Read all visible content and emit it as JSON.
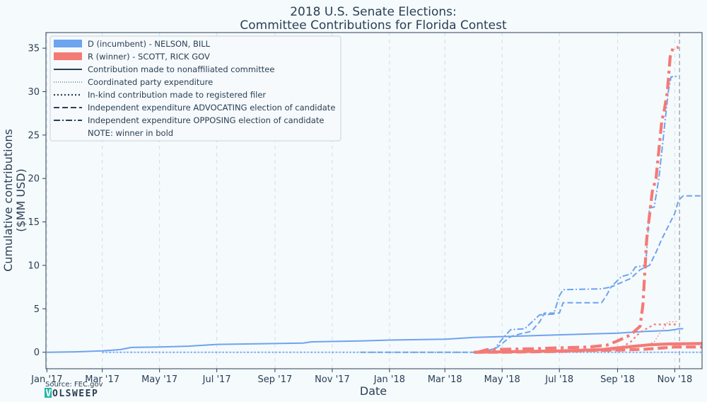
{
  "chart_data": {
    "type": "line",
    "title": [
      "2018 U.S. Senate Elections:",
      "Committee Contributions for Florida Contest"
    ],
    "xlabel": "Date",
    "ylabel": [
      "Cumulative contributions",
      "($MM USD)"
    ],
    "x_ticks": [
      {
        "date": "2017-01-01",
        "label": "Jan '17"
      },
      {
        "date": "2017-03-01",
        "label": "Mar '17"
      },
      {
        "date": "2017-05-01",
        "label": "May '17"
      },
      {
        "date": "2017-07-01",
        "label": "Jul '17"
      },
      {
        "date": "2017-09-01",
        "label": "Sep '17"
      },
      {
        "date": "2017-11-01",
        "label": "Nov '17"
      },
      {
        "date": "2018-01-01",
        "label": "Jan '18"
      },
      {
        "date": "2018-03-01",
        "label": "Mar '18"
      },
      {
        "date": "2018-05-01",
        "label": "May '18"
      },
      {
        "date": "2018-07-01",
        "label": "Jul '18"
      },
      {
        "date": "2018-09-01",
        "label": "Sep '18"
      },
      {
        "date": "2018-11-01",
        "label": "Nov '18"
      }
    ],
    "y_ticks": [
      0,
      5,
      10,
      15,
      20,
      25,
      30,
      35
    ],
    "xlim": [
      "2016-12-31",
      "2018-11-30"
    ],
    "ylim": [
      -1.9,
      36.8
    ],
    "grid": "vertical-dashed",
    "election_day": "2018-11-06",
    "legend_placement": "top-left",
    "legend": {
      "candidates": [
        {
          "label": "D (incumbent) - NELSON, BILL",
          "color": "#6ea3f0"
        },
        {
          "label": "R (winner) - SCOTT, RICK GOV",
          "color": "#f47a76"
        }
      ],
      "styles": [
        {
          "label": "Contribution made to nonaffiliated committee",
          "style": "solid"
        },
        {
          "label": "Coordinated party expenditure",
          "style": "thin-dotted"
        },
        {
          "label": "In-kind contribution made to registered filer",
          "style": "dotted"
        },
        {
          "label": "Independent expenditure ADVOCATING election of candidate",
          "style": "dashed"
        },
        {
          "label": "Independent expenditure OPPOSING election of candidate",
          "style": "dashdot"
        }
      ],
      "note": "NOTE: winner in bold"
    },
    "series": [
      {
        "candidate": "D",
        "style": "solid",
        "color": "#6ea3f0",
        "points": [
          [
            "2017-01-01",
            0
          ],
          [
            "2017-02-01",
            0.05
          ],
          [
            "2017-03-01",
            0.15
          ],
          [
            "2017-03-20",
            0.3
          ],
          [
            "2017-04-01",
            0.55
          ],
          [
            "2017-05-01",
            0.6
          ],
          [
            "2017-06-01",
            0.7
          ],
          [
            "2017-07-01",
            0.9
          ],
          [
            "2017-09-01",
            1.0
          ],
          [
            "2017-10-01",
            1.05
          ],
          [
            "2017-10-10",
            1.2
          ],
          [
            "2017-12-01",
            1.3
          ],
          [
            "2018-01-01",
            1.4
          ],
          [
            "2018-03-01",
            1.5
          ],
          [
            "2018-04-01",
            1.7
          ],
          [
            "2018-05-01",
            1.8
          ],
          [
            "2018-06-01",
            1.9
          ],
          [
            "2018-07-01",
            2.0
          ],
          [
            "2018-08-01",
            2.1
          ],
          [
            "2018-09-01",
            2.2
          ],
          [
            "2018-10-01",
            2.4
          ],
          [
            "2018-10-25",
            2.5
          ],
          [
            "2018-11-01",
            2.6
          ],
          [
            "2018-11-05",
            2.7
          ],
          [
            "2018-11-10",
            2.7
          ]
        ]
      },
      {
        "candidate": "D",
        "style": "thin-dotted",
        "color": "#6ea3f0",
        "points": [
          [
            "2017-03-01",
            0
          ],
          [
            "2018-11-30",
            0
          ]
        ]
      },
      {
        "candidate": "D",
        "style": "dotted",
        "color": "#6ea3f0",
        "points": [
          [
            "2017-03-01",
            0
          ],
          [
            "2018-11-30",
            0
          ]
        ]
      },
      {
        "candidate": "D",
        "style": "dashed",
        "color": "#6ea3f0",
        "points": [
          [
            "2017-12-01",
            0
          ],
          [
            "2018-04-10",
            0
          ],
          [
            "2018-04-25",
            0.5
          ],
          [
            "2018-05-01",
            1.0
          ],
          [
            "2018-05-10",
            1.8
          ],
          [
            "2018-05-20",
            2.1
          ],
          [
            "2018-06-01",
            2.4
          ],
          [
            "2018-06-10",
            3.5
          ],
          [
            "2018-06-15",
            4.5
          ],
          [
            "2018-07-01",
            4.5
          ],
          [
            "2018-07-05",
            5.7
          ],
          [
            "2018-08-15",
            5.7
          ],
          [
            "2018-08-20",
            6.5
          ],
          [
            "2018-08-25",
            7.5
          ],
          [
            "2018-09-15",
            8.5
          ],
          [
            "2018-09-25",
            9.5
          ],
          [
            "2018-10-05",
            10.0
          ],
          [
            "2018-10-12",
            11.5
          ],
          [
            "2018-10-18",
            13.0
          ],
          [
            "2018-10-25",
            14.5
          ],
          [
            "2018-11-01",
            16.0
          ],
          [
            "2018-11-05",
            17.5
          ],
          [
            "2018-11-10",
            18.0
          ],
          [
            "2018-11-30",
            18.0
          ]
        ]
      },
      {
        "candidate": "D",
        "style": "dashdot",
        "color": "#6ea3f0",
        "points": [
          [
            "2018-04-20",
            0
          ],
          [
            "2018-05-01",
            1.5
          ],
          [
            "2018-05-10",
            2.6
          ],
          [
            "2018-05-25",
            2.7
          ],
          [
            "2018-06-10",
            4.3
          ],
          [
            "2018-06-25",
            4.4
          ],
          [
            "2018-07-01",
            6.5
          ],
          [
            "2018-07-05",
            7.2
          ],
          [
            "2018-08-15",
            7.3
          ],
          [
            "2018-08-25",
            7.5
          ],
          [
            "2018-09-05",
            8.7
          ],
          [
            "2018-09-15",
            9.0
          ],
          [
            "2018-09-20",
            9.8
          ],
          [
            "2018-10-01",
            10.0
          ],
          [
            "2018-10-05",
            16.6
          ],
          [
            "2018-10-10",
            16.7
          ],
          [
            "2018-10-15",
            20.0
          ],
          [
            "2018-10-20",
            25.0
          ],
          [
            "2018-10-25",
            30.0
          ],
          [
            "2018-10-28",
            31.7
          ],
          [
            "2018-11-05",
            31.8
          ]
        ]
      },
      {
        "candidate": "R",
        "style": "solid",
        "color": "#f47a76",
        "points": [
          [
            "2018-04-01",
            0
          ],
          [
            "2018-05-01",
            0.05
          ],
          [
            "2018-07-01",
            0.15
          ],
          [
            "2018-08-15",
            0.3
          ],
          [
            "2018-09-01",
            0.5
          ],
          [
            "2018-09-20",
            0.7
          ],
          [
            "2018-10-05",
            0.85
          ],
          [
            "2018-10-25",
            0.95
          ],
          [
            "2018-11-30",
            1.0
          ]
        ]
      },
      {
        "candidate": "R",
        "style": "thin-dotted",
        "color": "#f47a76",
        "points": [
          [
            "2018-04-01",
            0
          ],
          [
            "2018-09-01",
            0.2
          ],
          [
            "2018-09-15",
            0.5
          ],
          [
            "2018-10-01",
            0.8
          ],
          [
            "2018-10-10",
            1.2
          ],
          [
            "2018-10-18",
            2.5
          ],
          [
            "2018-10-25",
            3.5
          ],
          [
            "2018-11-01",
            3.5
          ],
          [
            "2018-11-05",
            3.6
          ]
        ]
      },
      {
        "candidate": "R",
        "style": "dotted",
        "color": "#f47a76",
        "points": [
          [
            "2018-04-01",
            0
          ],
          [
            "2018-09-01",
            0.3
          ],
          [
            "2018-09-15",
            1.2
          ],
          [
            "2018-09-25",
            2.3
          ],
          [
            "2018-10-05",
            2.9
          ],
          [
            "2018-10-10",
            3.2
          ],
          [
            "2018-11-05",
            3.2
          ]
        ]
      },
      {
        "candidate": "R",
        "style": "dashed",
        "color": "#f47a76",
        "points": [
          [
            "2018-04-01",
            0
          ],
          [
            "2018-05-01",
            0
          ],
          [
            "2018-06-01",
            0.05
          ],
          [
            "2018-07-01",
            0.1
          ],
          [
            "2018-08-01",
            0.2
          ],
          [
            "2018-09-01",
            0.25
          ],
          [
            "2018-10-01",
            0.35
          ],
          [
            "2018-10-20",
            0.5
          ],
          [
            "2018-11-01",
            0.6
          ],
          [
            "2018-11-30",
            0.6
          ]
        ]
      },
      {
        "candidate": "R",
        "style": "dashdot",
        "color": "#f47a76",
        "points": [
          [
            "2018-04-05",
            0
          ],
          [
            "2018-04-15",
            0.3
          ],
          [
            "2018-06-01",
            0.4
          ],
          [
            "2018-07-01",
            0.5
          ],
          [
            "2018-08-01",
            0.6
          ],
          [
            "2018-08-20",
            0.8
          ],
          [
            "2018-09-01",
            1.3
          ],
          [
            "2018-09-15",
            2.0
          ],
          [
            "2018-09-25",
            3.0
          ],
          [
            "2018-09-28",
            5.5
          ],
          [
            "2018-10-02",
            13.0
          ],
          [
            "2018-10-08",
            18.5
          ],
          [
            "2018-10-12",
            20.0
          ],
          [
            "2018-10-18",
            26.5
          ],
          [
            "2018-10-21",
            28.0
          ],
          [
            "2018-10-24",
            30.0
          ],
          [
            "2018-10-27",
            34.0
          ],
          [
            "2018-10-30",
            35.0
          ],
          [
            "2018-11-05",
            35.1
          ]
        ]
      }
    ]
  },
  "footer": {
    "source": "Source: FEC.gov",
    "logo_text": "OLSWEEP",
    "logo_mark": "V"
  }
}
